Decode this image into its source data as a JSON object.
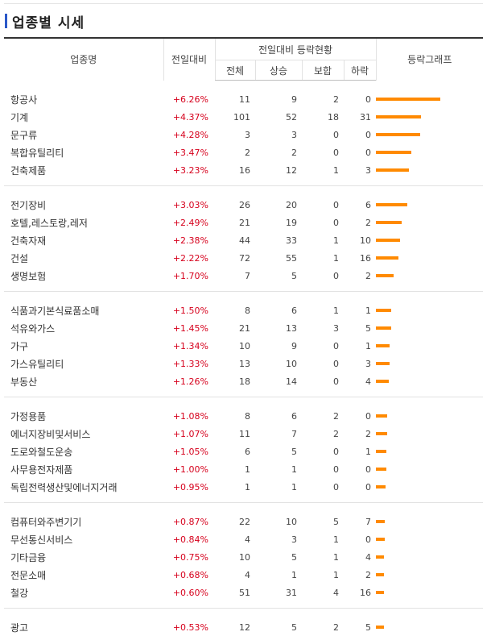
{
  "title": "업종별 시세",
  "header": {
    "name": "업종명",
    "change": "전일대비",
    "group": "전일대비 등락현황",
    "total": "전체",
    "up": "상승",
    "flat": "보합",
    "down": "하락",
    "graph": "등락그래프"
  },
  "bar_color": "#ff8a00",
  "groups": [
    [
      {
        "name": "항공사",
        "change": "+6.26%",
        "total": "11",
        "up": "9",
        "flat": "2",
        "down": "0",
        "bar": 6.26
      },
      {
        "name": "기계",
        "change": "+4.37%",
        "total": "101",
        "up": "52",
        "flat": "18",
        "down": "31",
        "bar": 4.37
      },
      {
        "name": "문구류",
        "change": "+4.28%",
        "total": "3",
        "up": "3",
        "flat": "0",
        "down": "0",
        "bar": 4.28
      },
      {
        "name": "복합유틸리티",
        "change": "+3.47%",
        "total": "2",
        "up": "2",
        "flat": "0",
        "down": "0",
        "bar": 3.47
      },
      {
        "name": "건축제품",
        "change": "+3.23%",
        "total": "16",
        "up": "12",
        "flat": "1",
        "down": "3",
        "bar": 3.23
      }
    ],
    [
      {
        "name": "전기장비",
        "change": "+3.03%",
        "total": "26",
        "up": "20",
        "flat": "0",
        "down": "6",
        "bar": 3.03
      },
      {
        "name": "호텔,레스토랑,레저",
        "change": "+2.49%",
        "total": "21",
        "up": "19",
        "flat": "0",
        "down": "2",
        "bar": 2.49
      },
      {
        "name": "건축자재",
        "change": "+2.38%",
        "total": "44",
        "up": "33",
        "flat": "1",
        "down": "10",
        "bar": 2.38
      },
      {
        "name": "건설",
        "change": "+2.22%",
        "total": "72",
        "up": "55",
        "flat": "1",
        "down": "16",
        "bar": 2.22
      },
      {
        "name": "생명보험",
        "change": "+1.70%",
        "total": "7",
        "up": "5",
        "flat": "0",
        "down": "2",
        "bar": 1.7
      }
    ],
    [
      {
        "name": "식품과기본식료품소매",
        "change": "+1.50%",
        "total": "8",
        "up": "6",
        "flat": "1",
        "down": "1",
        "bar": 1.5
      },
      {
        "name": "석유와가스",
        "change": "+1.45%",
        "total": "21",
        "up": "13",
        "flat": "3",
        "down": "5",
        "bar": 1.45
      },
      {
        "name": "가구",
        "change": "+1.34%",
        "total": "10",
        "up": "9",
        "flat": "0",
        "down": "1",
        "bar": 1.34
      },
      {
        "name": "가스유틸리티",
        "change": "+1.33%",
        "total": "13",
        "up": "10",
        "flat": "0",
        "down": "3",
        "bar": 1.33
      },
      {
        "name": "부동산",
        "change": "+1.26%",
        "total": "18",
        "up": "14",
        "flat": "0",
        "down": "4",
        "bar": 1.26
      }
    ],
    [
      {
        "name": "가정용품",
        "change": "+1.08%",
        "total": "8",
        "up": "6",
        "flat": "2",
        "down": "0",
        "bar": 1.08
      },
      {
        "name": "에너지장비및서비스",
        "change": "+1.07%",
        "total": "11",
        "up": "7",
        "flat": "2",
        "down": "2",
        "bar": 1.07
      },
      {
        "name": "도로와철도운송",
        "change": "+1.05%",
        "total": "6",
        "up": "5",
        "flat": "0",
        "down": "1",
        "bar": 1.05
      },
      {
        "name": "사무용전자제품",
        "change": "+1.00%",
        "total": "1",
        "up": "1",
        "flat": "0",
        "down": "0",
        "bar": 1.0
      },
      {
        "name": "독립전력생산및에너지거래",
        "change": "+0.95%",
        "total": "1",
        "up": "1",
        "flat": "0",
        "down": "0",
        "bar": 0.95
      }
    ],
    [
      {
        "name": "컴퓨터와주변기기",
        "change": "+0.87%",
        "total": "22",
        "up": "10",
        "flat": "5",
        "down": "7",
        "bar": 0.87
      },
      {
        "name": "무선통신서비스",
        "change": "+0.84%",
        "total": "4",
        "up": "3",
        "flat": "1",
        "down": "0",
        "bar": 0.84
      },
      {
        "name": "기타금융",
        "change": "+0.75%",
        "total": "10",
        "up": "5",
        "flat": "1",
        "down": "4",
        "bar": 0.75
      },
      {
        "name": "전문소매",
        "change": "+0.68%",
        "total": "4",
        "up": "1",
        "flat": "1",
        "down": "2",
        "bar": 0.68
      },
      {
        "name": "철강",
        "change": "+0.60%",
        "total": "51",
        "up": "31",
        "flat": "4",
        "down": "16",
        "bar": 0.6
      }
    ],
    [
      {
        "name": "광고",
        "change": "+0.53%",
        "total": "12",
        "up": "5",
        "flat": "2",
        "down": "5",
        "bar": 0.53
      }
    ]
  ]
}
